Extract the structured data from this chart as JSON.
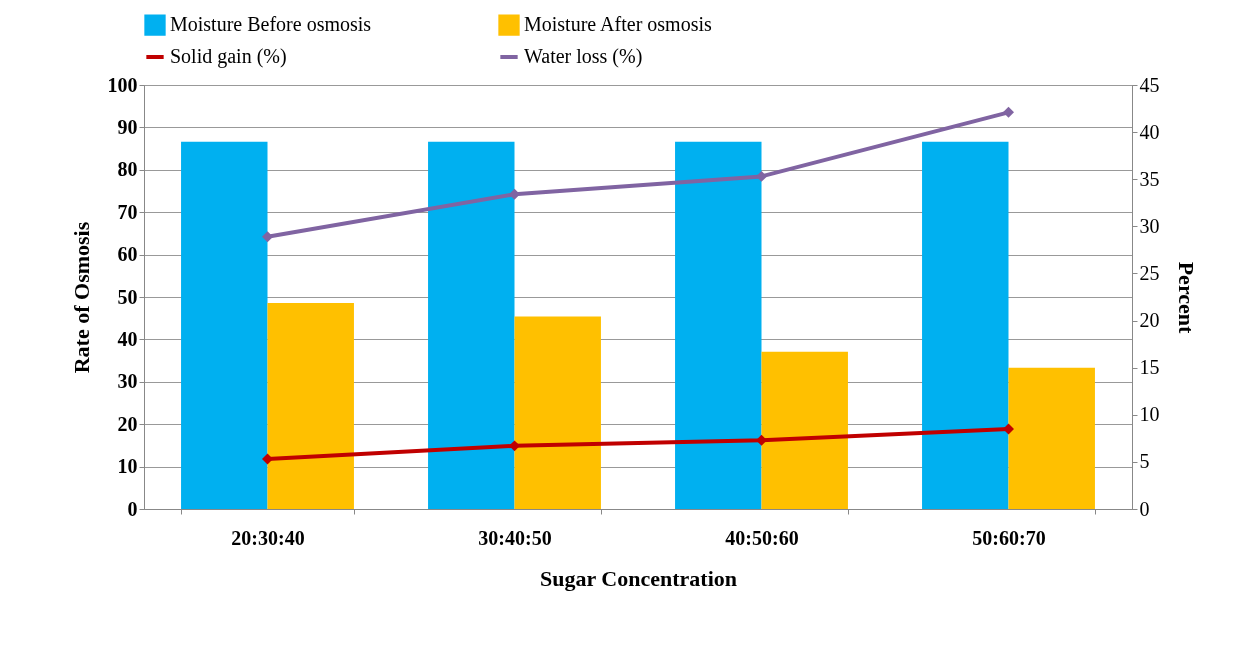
{
  "chart_data": {
    "type": "bar",
    "xlabel": "Sugar Concentration",
    "ylabel": "Rate of Osmosis",
    "y2label": "Percent",
    "categories": [
      "20:30:40",
      "30:40:50",
      "40:50:60",
      "50:60:70"
    ],
    "series": [
      {
        "name": "Moisture Before osmosis",
        "color": "#00b0f0",
        "values": [
          86.6,
          86.6,
          86.6,
          86.6
        ]
      },
      {
        "name": "Moisture After osmosis",
        "color": "#ffc000",
        "values": [
          48.6,
          45.4,
          37.1,
          33.3
        ]
      },
      {
        "name": "Solid gain (%)",
        "type": "line",
        "axis": "y2",
        "color": "#c00000",
        "values": [
          5.3,
          6.7,
          7.3,
          8.5
        ]
      },
      {
        "name": "Water loss (%)",
        "type": "line",
        "axis": "y2",
        "color": "#8064a2",
        "values": [
          28.9,
          33.4,
          35.3,
          42.1
        ]
      }
    ],
    "ylim": [
      0,
      100
    ],
    "yticks": [
      0,
      10,
      20,
      30,
      40,
      50,
      60,
      70,
      80,
      90,
      100
    ],
    "y2lim": [
      0,
      45
    ],
    "y2ticks": [
      0,
      5,
      10,
      15,
      20,
      25,
      30,
      35,
      40,
      45
    ],
    "grid": "y",
    "legend": "top",
    "marker": "diamond",
    "line_style": "solid"
  }
}
